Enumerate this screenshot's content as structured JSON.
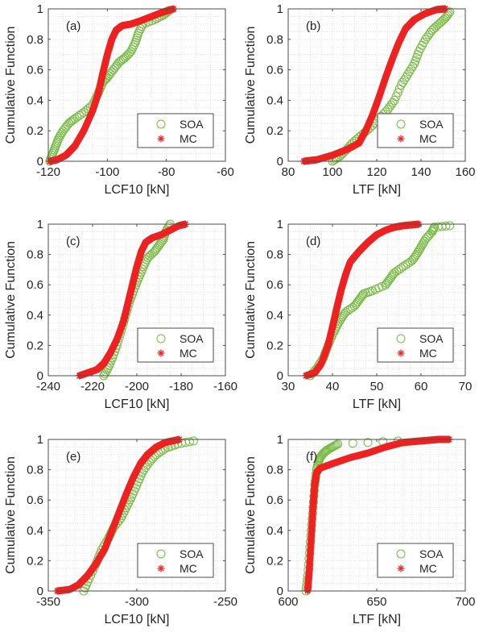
{
  "figure": {
    "colors": {
      "soa": "#77bb44",
      "mc": "#ee2222",
      "axis": "#4d4d4d",
      "grid": "#d0d0d0"
    }
  },
  "chart_data": [
    {
      "type": "scatter",
      "panel": "(a)",
      "xlabel": "LCF10 [kN]",
      "ylabel": "Cumulative Function",
      "xlim": [
        -120,
        -60
      ],
      "ylim": [
        0,
        1
      ],
      "xticks": [
        "-120",
        "-100",
        "-80",
        "-60"
      ],
      "yticks": [
        "0",
        "0.2",
        "0.4",
        "0.6",
        "0.8",
        "1"
      ],
      "grid": "minor-dotted",
      "legend": {
        "placement": "bottom-right",
        "entries": [
          "SOA",
          "MC"
        ]
      },
      "series": [
        {
          "name": "SOA",
          "marker": "circle",
          "points": [
            [
              -119.5,
              0.0
            ],
            [
              -118.5,
              0.05
            ],
            [
              -117.5,
              0.1
            ],
            [
              -116.5,
              0.15
            ],
            [
              -115,
              0.2
            ],
            [
              -113,
              0.25
            ],
            [
              -111,
              0.28
            ],
            [
              -108,
              0.32
            ],
            [
              -105,
              0.37
            ],
            [
              -103,
              0.45
            ],
            [
              -101.5,
              0.52
            ],
            [
              -100,
              0.55
            ],
            [
              -98,
              0.6
            ],
            [
              -96,
              0.65
            ],
            [
              -94,
              0.68
            ],
            [
              -92,
              0.72
            ],
            [
              -90.5,
              0.78
            ],
            [
              -89.5,
              0.84
            ],
            [
              -88,
              0.9
            ],
            [
              -84,
              0.93
            ],
            [
              -81,
              0.96
            ],
            [
              -79,
              0.99
            ]
          ]
        },
        {
          "name": "MC",
          "marker": "asterisk",
          "points": [
            [
              -119.5,
              0.0
            ],
            [
              -117,
              0.01
            ],
            [
              -114,
              0.04
            ],
            [
              -111,
              0.1
            ],
            [
              -108,
              0.2
            ],
            [
              -105,
              0.33
            ],
            [
              -103,
              0.45
            ],
            [
              -101.5,
              0.58
            ],
            [
              -100,
              0.7
            ],
            [
              -98.5,
              0.8
            ],
            [
              -97,
              0.86
            ],
            [
              -95,
              0.89
            ],
            [
              -92,
              0.9
            ],
            [
              -89,
              0.92
            ],
            [
              -85,
              0.95
            ],
            [
              -81,
              0.98
            ],
            [
              -77.5,
              1.0
            ]
          ]
        }
      ]
    },
    {
      "type": "scatter",
      "panel": "(b)",
      "xlabel": "LTF [kN]",
      "ylabel": "Cumulative Function",
      "xlim": [
        80,
        160
      ],
      "ylim": [
        0,
        1
      ],
      "xticks": [
        "80",
        "100",
        "120",
        "140",
        "160"
      ],
      "yticks": [
        "0",
        "0.2",
        "0.4",
        "0.6",
        "0.8",
        "1"
      ],
      "grid": "minor-dotted",
      "legend": {
        "placement": "bottom-right",
        "entries": [
          "SOA",
          "MC"
        ]
      },
      "series": [
        {
          "name": "SOA",
          "marker": "circle",
          "points": [
            [
              100,
              0.0
            ],
            [
              103,
              0.03
            ],
            [
              106,
              0.07
            ],
            [
              109,
              0.12
            ],
            [
              113,
              0.17
            ],
            [
              117,
              0.22
            ],
            [
              121,
              0.28
            ],
            [
              125,
              0.34
            ],
            [
              128,
              0.4
            ],
            [
              131,
              0.5
            ],
            [
              134,
              0.57
            ],
            [
              137,
              0.64
            ],
            [
              139,
              0.72
            ],
            [
              142,
              0.8
            ],
            [
              145,
              0.86
            ],
            [
              148,
              0.9
            ],
            [
              151,
              0.94
            ],
            [
              153,
              0.98
            ]
          ]
        },
        {
          "name": "MC",
          "marker": "asterisk",
          "points": [
            [
              87,
              0.0
            ],
            [
              93,
              0.01
            ],
            [
              100,
              0.04
            ],
            [
              107,
              0.08
            ],
            [
              112,
              0.12
            ],
            [
              115,
              0.2
            ],
            [
              118,
              0.3
            ],
            [
              121,
              0.42
            ],
            [
              124,
              0.55
            ],
            [
              127,
              0.67
            ],
            [
              130,
              0.78
            ],
            [
              133,
              0.87
            ],
            [
              137,
              0.93
            ],
            [
              142,
              0.97
            ],
            [
              147,
              0.995
            ],
            [
              151,
              1.0
            ]
          ]
        }
      ]
    },
    {
      "type": "scatter",
      "panel": "(c)",
      "xlabel": "LCF10 [kN]",
      "ylabel": "Cumulative Function",
      "xlim": [
        -240,
        -160
      ],
      "ylim": [
        0,
        1
      ],
      "xticks": [
        "-240",
        "-220",
        "-200",
        "-180",
        "-160"
      ],
      "yticks": [
        "0",
        "0.2",
        "0.4",
        "0.6",
        "0.8",
        "1"
      ],
      "grid": "minor-dotted",
      "legend": {
        "placement": "bottom-right",
        "entries": [
          "SOA",
          "MC"
        ]
      },
      "series": [
        {
          "name": "SOA",
          "marker": "circle",
          "points": [
            [
              -215,
              0.0
            ],
            [
              -213,
              0.05
            ],
            [
              -211,
              0.12
            ],
            [
              -209,
              0.2
            ],
            [
              -207,
              0.3
            ],
            [
              -205,
              0.4
            ],
            [
              -203,
              0.5
            ],
            [
              -201,
              0.58
            ],
            [
              -199,
              0.65
            ],
            [
              -197,
              0.72
            ],
            [
              -195,
              0.78
            ],
            [
              -192,
              0.82
            ],
            [
              -190,
              0.86
            ],
            [
              -188,
              0.9
            ],
            [
              -187,
              0.95
            ],
            [
              -185,
              1.0
            ]
          ]
        },
        {
          "name": "MC",
          "marker": "asterisk",
          "points": [
            [
              -226,
              0.0
            ],
            [
              -222,
              0.02
            ],
            [
              -218,
              0.04
            ],
            [
              -215,
              0.08
            ],
            [
              -212,
              0.15
            ],
            [
              -209,
              0.24
            ],
            [
              -206,
              0.36
            ],
            [
              -204,
              0.48
            ],
            [
              -202,
              0.6
            ],
            [
              -200,
              0.72
            ],
            [
              -198,
              0.82
            ],
            [
              -196,
              0.88
            ],
            [
              -193,
              0.91
            ],
            [
              -189,
              0.93
            ],
            [
              -185,
              0.96
            ],
            [
              -181,
              0.99
            ],
            [
              -178,
              1.0
            ]
          ]
        }
      ]
    },
    {
      "type": "scatter",
      "panel": "(d)",
      "xlabel": "LTF [kN]",
      "ylabel": "Cumulative Function",
      "xlim": [
        30,
        70
      ],
      "ylim": [
        0,
        1
      ],
      "xticks": [
        "30",
        "40",
        "50",
        "60",
        "70"
      ],
      "yticks": [
        "0",
        "0.2",
        "0.4",
        "0.6",
        "0.8",
        "1"
      ],
      "grid": "minor-dotted",
      "legend": {
        "placement": "bottom-right",
        "entries": [
          "SOA",
          "MC"
        ]
      },
      "series": [
        {
          "name": "SOA",
          "marker": "circle",
          "points": [
            [
              35,
              0.0
            ],
            [
              36.5,
              0.05
            ],
            [
              38,
              0.12
            ],
            [
              39,
              0.2
            ],
            [
              40,
              0.27
            ],
            [
              41,
              0.33
            ],
            [
              42,
              0.38
            ],
            [
              43,
              0.42
            ],
            [
              45,
              0.46
            ],
            [
              46,
              0.5
            ],
            [
              47,
              0.54
            ],
            [
              49,
              0.56
            ],
            [
              52,
              0.6
            ],
            [
              53,
              0.64
            ],
            [
              54,
              0.68
            ],
            [
              56,
              0.72
            ],
            [
              58,
              0.76
            ],
            [
              59,
              0.8
            ],
            [
              60,
              0.85
            ],
            [
              61,
              0.9
            ],
            [
              62.5,
              0.95
            ],
            [
              63,
              0.98
            ],
            [
              66.5,
              0.99
            ]
          ]
        },
        {
          "name": "MC",
          "marker": "asterisk",
          "points": [
            [
              34,
              0.0
            ],
            [
              36,
              0.02
            ],
            [
              37.5,
              0.08
            ],
            [
              39,
              0.2
            ],
            [
              40,
              0.32
            ],
            [
              41,
              0.45
            ],
            [
              42,
              0.57
            ],
            [
              43,
              0.67
            ],
            [
              44,
              0.75
            ],
            [
              46,
              0.82
            ],
            [
              48,
              0.88
            ],
            [
              50,
              0.93
            ],
            [
              52,
              0.96
            ],
            [
              54,
              0.98
            ],
            [
              56,
              0.99
            ],
            [
              59.5,
              1.0
            ]
          ]
        }
      ]
    },
    {
      "type": "scatter",
      "panel": "(e)",
      "xlabel": "LCF10 [kN]",
      "ylabel": "Cumulative Function",
      "xlim": [
        -350,
        -250
      ],
      "ylim": [
        0,
        1
      ],
      "xticks": [
        "-350",
        "-300",
        "-250"
      ],
      "yticks": [
        "0",
        "0.2",
        "0.4",
        "0.6",
        "0.8",
        "1"
      ],
      "grid": "minor-dotted",
      "legend": {
        "placement": "bottom-right",
        "entries": [
          "SOA",
          "MC"
        ]
      },
      "series": [
        {
          "name": "SOA",
          "marker": "circle",
          "points": [
            [
              -330,
              0.0
            ],
            [
              -327,
              0.08
            ],
            [
              -323,
              0.18
            ],
            [
              -320,
              0.27
            ],
            [
              -316,
              0.35
            ],
            [
              -313,
              0.42
            ],
            [
              -309,
              0.48
            ],
            [
              -306,
              0.55
            ],
            [
              -303,
              0.62
            ],
            [
              -300,
              0.7
            ],
            [
              -297,
              0.78
            ],
            [
              -293,
              0.85
            ],
            [
              -289,
              0.9
            ],
            [
              -284,
              0.94
            ],
            [
              -277,
              0.97
            ],
            [
              -268,
              0.99
            ]
          ]
        },
        {
          "name": "MC",
          "marker": "asterisk",
          "points": [
            [
              -345,
              0.0
            ],
            [
              -338,
              0.01
            ],
            [
              -333,
              0.04
            ],
            [
              -328,
              0.1
            ],
            [
              -323,
              0.18
            ],
            [
              -318,
              0.28
            ],
            [
              -314,
              0.4
            ],
            [
              -310,
              0.52
            ],
            [
              -306,
              0.64
            ],
            [
              -302,
              0.75
            ],
            [
              -298,
              0.84
            ],
            [
              -294,
              0.9
            ],
            [
              -289,
              0.95
            ],
            [
              -284,
              0.98
            ],
            [
              -276,
              1.0
            ]
          ]
        }
      ]
    },
    {
      "type": "scatter",
      "panel": "(f)",
      "xlabel": "LTF [kN]",
      "ylabel": "Cumulative Function",
      "xlim": [
        600,
        700
      ],
      "ylim": [
        0,
        1
      ],
      "xticks": [
        "600",
        "650",
        "700"
      ],
      "yticks": [
        "0",
        "0.2",
        "0.4",
        "0.6",
        "0.8",
        "1"
      ],
      "grid": "minor-dotted",
      "legend": {
        "placement": "bottom-right",
        "entries": [
          "SOA",
          "MC"
        ]
      },
      "series": [
        {
          "name": "SOA",
          "marker": "circle",
          "points": [
            [
              610,
              0.0
            ],
            [
              611,
              0.1
            ],
            [
              612,
              0.25
            ],
            [
              613,
              0.4
            ],
            [
              614,
              0.55
            ],
            [
              615,
              0.7
            ],
            [
              616,
              0.8
            ],
            [
              617,
              0.85
            ],
            [
              618,
              0.88
            ],
            [
              620,
              0.91
            ],
            [
              622,
              0.93
            ],
            [
              625,
              0.95
            ],
            [
              628,
              0.97
            ],
            [
              662,
              0.99
            ]
          ]
        },
        {
          "name": "MC",
          "marker": "asterisk",
          "points": [
            [
              611,
              0.0
            ],
            [
              612,
              0.15
            ],
            [
              613,
              0.35
            ],
            [
              614,
              0.55
            ],
            [
              615,
              0.7
            ],
            [
              616,
              0.78
            ],
            [
              618,
              0.81
            ],
            [
              625,
              0.84
            ],
            [
              635,
              0.88
            ],
            [
              645,
              0.91
            ],
            [
              655,
              0.95
            ],
            [
              665,
              0.98
            ],
            [
              675,
              0.99
            ],
            [
              685,
              1.0
            ],
            [
              691,
              1.0
            ]
          ]
        }
      ]
    }
  ]
}
